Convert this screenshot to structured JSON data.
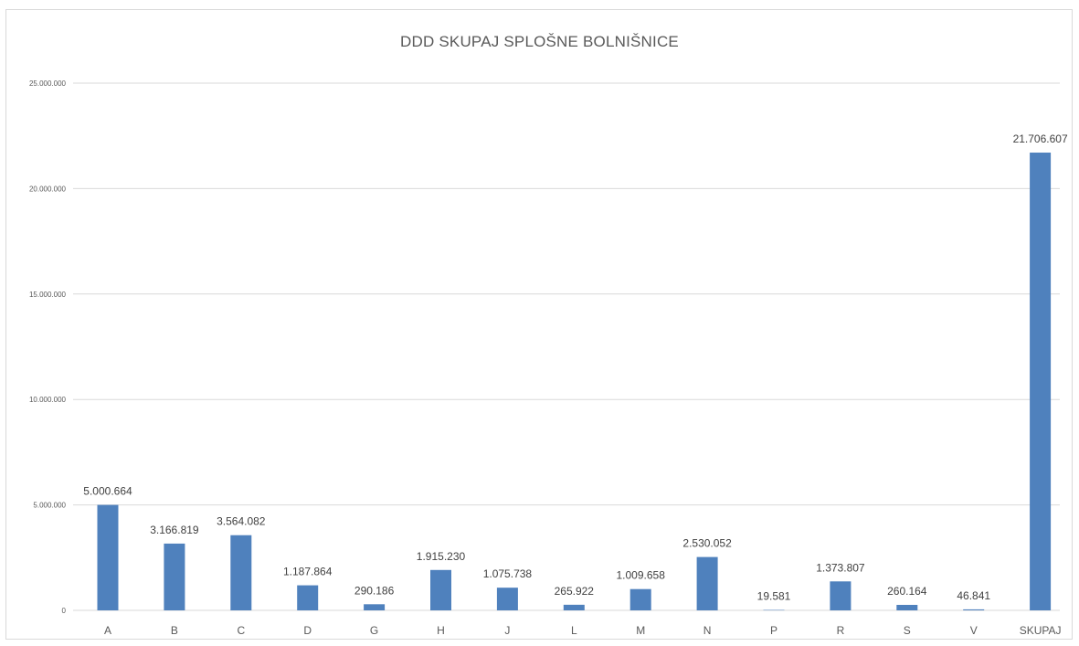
{
  "chart_data": {
    "type": "bar",
    "title": "DDD SKUPAJ SPLOŠNE BOLNIŠNICE",
    "xlabel": "",
    "ylabel": "",
    "categories": [
      "A",
      "B",
      "C",
      "D",
      "G",
      "H",
      "J",
      "L",
      "M",
      "N",
      "P",
      "R",
      "S",
      "V",
      "SKUPAJ"
    ],
    "values": [
      5000664,
      3166819,
      3564082,
      1187864,
      290186,
      1915230,
      1075738,
      265922,
      1009658,
      2530052,
      19581,
      1373807,
      260164,
      46841,
      21706607
    ],
    "data_labels": [
      "5.000.664",
      "3.166.819",
      "3.564.082",
      "1.187.864",
      "290.186",
      "1.915.230",
      "1.075.738",
      "265.922",
      "1.009.658",
      "2.530.052",
      "19.581",
      "1.373.807",
      "260.164",
      "46.841",
      "21.706.607"
    ],
    "ylim": [
      0,
      25000000
    ],
    "yticks": [
      0,
      5000000,
      10000000,
      15000000,
      20000000,
      25000000
    ],
    "ytick_labels": [
      "0",
      "5.000.000",
      "10.000.000",
      "15.000.000",
      "20.000.000",
      "25.000.000"
    ],
    "grid": true,
    "legend": "none",
    "colors": {
      "bar": "#4f81bd",
      "grid": "#d9d9d9",
      "text": "#595959"
    }
  }
}
